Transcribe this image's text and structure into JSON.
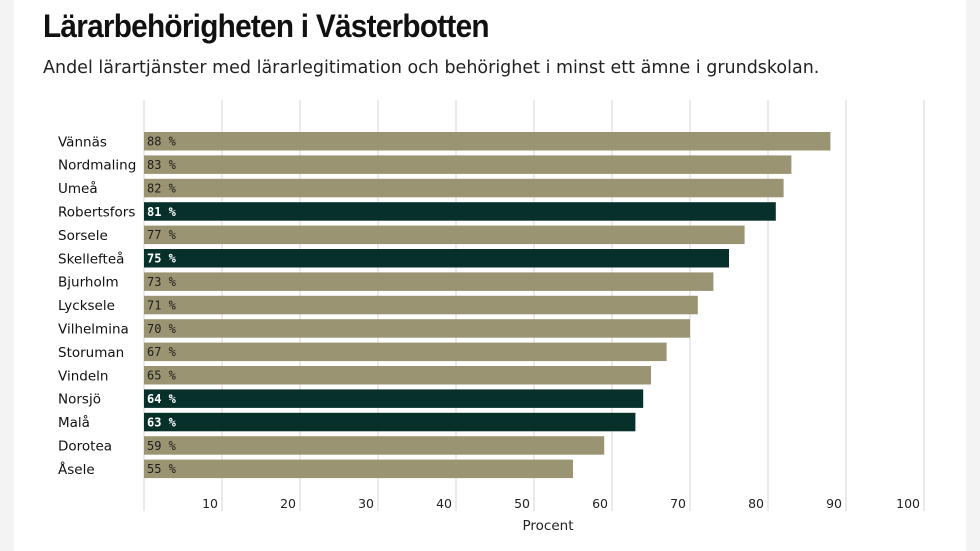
{
  "title": "Lärarbehörigheten i Västerbotten",
  "subtitle": "Andel lärartjänster med lärarlegitimation och behörighet i minst ett ämne i grundskolan.",
  "colors": {
    "default_bar": "#9b9472",
    "highlight_bar": "#08302b",
    "default_label": "#1e1e1e",
    "highlight_label": "#ffffff"
  },
  "chart_data": {
    "type": "bar",
    "orientation": "horizontal",
    "categories": [
      "Vännäs",
      "Nordmaling",
      "Umeå",
      "Robertsfors",
      "Sorsele",
      "Skellefteå",
      "Bjurholm",
      "Lycksele",
      "Vilhelmina",
      "Storuman",
      "Vindeln",
      "Norsjö",
      "Malå",
      "Dorotea",
      "Åsele"
    ],
    "values": [
      88,
      83,
      82,
      81,
      77,
      75,
      73,
      71,
      70,
      67,
      65,
      64,
      63,
      59,
      55
    ],
    "value_labels": [
      "88 %",
      "83 %",
      "82 %",
      "81 %",
      "77 %",
      "75 %",
      "73 %",
      "71 %",
      "70 %",
      "67 %",
      "65 %",
      "64 %",
      "63 %",
      "59 %",
      "55 %"
    ],
    "highlighted": [
      "Robertsfors",
      "Skellefteå",
      "Norsjö",
      "Malå"
    ],
    "xlim": [
      0,
      100
    ],
    "xticks": [
      10,
      20,
      30,
      40,
      50,
      60,
      70,
      80,
      90,
      100
    ],
    "xlabel": "Procent",
    "ylabel": "",
    "grid": true
  }
}
